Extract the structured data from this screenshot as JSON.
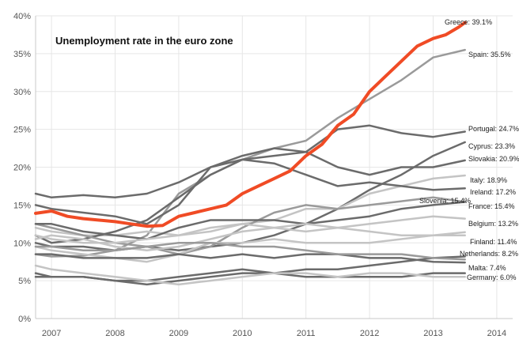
{
  "chart_data": {
    "type": "line",
    "title": "Unemployment rate in the euro zone",
    "xlabel": "",
    "ylabel": "",
    "xlim": [
      2006.75,
      2014.25
    ],
    "ylim": [
      0,
      40
    ],
    "x_ticks": [
      2007,
      2008,
      2009,
      2010,
      2011,
      2012,
      2013,
      2014
    ],
    "y_ticks": [
      0,
      5,
      10,
      15,
      20,
      25,
      30,
      35,
      40
    ],
    "y_tick_labels": [
      "0%",
      "5%",
      "10%",
      "15%",
      "20%",
      "25%",
      "30%",
      "35%",
      "40%"
    ],
    "grid": true,
    "colors": {
      "highlight": "#f04b25",
      "dark": "#6b6b6b",
      "medium": "#9a9a9a",
      "light": "#c4c4c4",
      "grid": "#e6e6e6",
      "axis": "#c8c8c8"
    },
    "series": [
      {
        "name": "Greece",
        "end_label": "Greece: 39.1%",
        "color": "highlight",
        "x": [
          2006.75,
          2007.0,
          2007.25,
          2007.5,
          2007.75,
          2008.0,
          2008.25,
          2008.5,
          2008.75,
          2009.0,
          2009.25,
          2009.5,
          2009.75,
          2010.0,
          2010.25,
          2010.5,
          2010.75,
          2011.0,
          2011.25,
          2011.5,
          2011.75,
          2012.0,
          2012.25,
          2012.5,
          2012.75,
          2013.0,
          2013.2,
          2013.4,
          2013.5
        ],
        "y": [
          13.9,
          14.2,
          13.5,
          13.2,
          13.0,
          12.8,
          12.5,
          12.2,
          12.3,
          13.5,
          14.0,
          14.5,
          15.0,
          16.5,
          17.5,
          18.5,
          19.5,
          21.5,
          23.0,
          25.5,
          27.0,
          30.0,
          32.0,
          34.0,
          36.0,
          37.0,
          37.5,
          38.5,
          39.1
        ]
      },
      {
        "name": "Spain",
        "end_label": "Spain: 35.5%",
        "color": "medium",
        "x": [
          2006.75,
          2007.0,
          2007.5,
          2008.0,
          2008.5,
          2009.0,
          2009.5,
          2010.0,
          2010.5,
          2011.0,
          2011.5,
          2012.0,
          2012.5,
          2013.0,
          2013.5
        ],
        "y": [
          8.5,
          8.2,
          8.3,
          9.0,
          11.0,
          16.5,
          19.0,
          21.0,
          22.5,
          23.5,
          26.5,
          29.0,
          31.5,
          34.5,
          35.5
        ]
      },
      {
        "name": "Portugal",
        "end_label": "Portugal: 24.7%",
        "color": "dark",
        "x": [
          2006.75,
          2007.0,
          2007.5,
          2008.0,
          2008.5,
          2009.0,
          2009.5,
          2010.0,
          2010.5,
          2011.0,
          2011.5,
          2012.0,
          2012.5,
          2013.0,
          2013.5
        ],
        "y": [
          16.5,
          16.0,
          16.3,
          16.0,
          16.5,
          18.0,
          20.0,
          21.0,
          21.5,
          22.0,
          25.0,
          25.5,
          24.5,
          24.0,
          24.7
        ]
      },
      {
        "name": "Cyprus",
        "end_label": "Cyprus: 23.3%",
        "color": "dark",
        "x": [
          2006.75,
          2007.0,
          2007.5,
          2008.0,
          2008.5,
          2009.0,
          2009.5,
          2010.0,
          2010.5,
          2011.0,
          2011.5,
          2012.0,
          2012.5,
          2013.0,
          2013.5
        ],
        "y": [
          10.0,
          9.5,
          9.5,
          9.0,
          9.5,
          9.0,
          9.5,
          10.0,
          11.0,
          12.5,
          14.5,
          17.0,
          19.0,
          21.5,
          23.3
        ]
      },
      {
        "name": "Slovakia",
        "end_label": "Slovakia: 20.9%",
        "color": "dark",
        "x": [
          2006.75,
          2007.0,
          2007.5,
          2008.0,
          2008.5,
          2009.0,
          2009.5,
          2010.0,
          2010.5,
          2011.0,
          2011.5,
          2012.0,
          2012.5,
          2013.0,
          2013.5
        ],
        "y": [
          15.0,
          14.5,
          14.0,
          13.5,
          12.5,
          15.0,
          20.0,
          21.5,
          22.5,
          22.0,
          20.0,
          19.0,
          20.0,
          20.0,
          20.9
        ]
      },
      {
        "name": "Italy",
        "end_label": "Italy: 18.9%",
        "color": "light",
        "x": [
          2006.75,
          2007.0,
          2007.5,
          2008.0,
          2008.5,
          2009.0,
          2009.5,
          2010.0,
          2010.5,
          2011.0,
          2011.5,
          2012.0,
          2012.5,
          2013.0,
          2013.5
        ],
        "y": [
          12.0,
          11.5,
          11.0,
          11.0,
          11.5,
          11.0,
          11.5,
          12.5,
          13.0,
          14.5,
          14.5,
          16.5,
          17.5,
          18.5,
          18.9
        ]
      },
      {
        "name": "Ireland",
        "end_label": "Ireland: 17.2%",
        "color": "dark",
        "x": [
          2006.75,
          2007.0,
          2007.5,
          2008.0,
          2008.5,
          2009.0,
          2009.5,
          2010.0,
          2010.5,
          2011.0,
          2011.5,
          2012.0,
          2012.5,
          2013.0,
          2013.5
        ],
        "y": [
          11.0,
          10.0,
          10.5,
          11.5,
          13.0,
          16.0,
          19.0,
          21.0,
          20.5,
          19.0,
          17.5,
          18.0,
          17.5,
          17.0,
          17.2
        ]
      },
      {
        "name": "Slovenia",
        "end_label": "Slovenia: 15.4%",
        "color": "medium",
        "x": [
          2006.75,
          2007.0,
          2007.5,
          2008.0,
          2008.5,
          2009.0,
          2009.5,
          2010.0,
          2010.5,
          2011.0,
          2011.5,
          2012.0,
          2012.5,
          2013.0,
          2013.5
        ],
        "y": [
          12.5,
          12.0,
          11.0,
          10.0,
          9.5,
          8.5,
          9.5,
          12.0,
          14.0,
          15.0,
          14.5,
          15.0,
          15.5,
          16.0,
          15.4
        ]
      },
      {
        "name": "France",
        "end_label": "France: 15.4%",
        "color": "dark",
        "x": [
          2006.75,
          2007.0,
          2007.5,
          2008.0,
          2008.5,
          2009.0,
          2009.5,
          2010.0,
          2010.5,
          2011.0,
          2011.5,
          2012.0,
          2012.5,
          2013.0,
          2013.5
        ],
        "y": [
          12.5,
          12.5,
          11.5,
          11.0,
          10.5,
          12.0,
          13.0,
          13.0,
          13.0,
          12.5,
          13.0,
          13.5,
          14.5,
          15.0,
          15.4
        ]
      },
      {
        "name": "Belgium",
        "end_label": "Belgium: 13.2%",
        "color": "light",
        "x": [
          2006.75,
          2007.0,
          2007.5,
          2008.0,
          2008.5,
          2009.0,
          2009.5,
          2010.0,
          2010.5,
          2011.0,
          2011.5,
          2012.0,
          2012.5,
          2013.0,
          2013.5
        ],
        "y": [
          11.0,
          10.5,
          10.0,
          10.0,
          10.5,
          11.0,
          12.0,
          12.5,
          12.0,
          11.5,
          12.0,
          12.5,
          13.0,
          13.5,
          13.2
        ]
      },
      {
        "name": "Finland",
        "end_label": "Finland: 11.4%",
        "color": "light",
        "x": [
          2006.75,
          2007.0,
          2007.5,
          2008.0,
          2008.5,
          2009.0,
          2009.5,
          2010.0,
          2010.5,
          2011.0,
          2011.5,
          2012.0,
          2012.5,
          2013.0,
          2013.5
        ],
        "y": [
          9.5,
          9.0,
          8.5,
          8.0,
          7.5,
          8.5,
          10.0,
          10.0,
          10.5,
          10.0,
          10.0,
          10.0,
          10.5,
          11.0,
          11.4
        ]
      },
      {
        "name": "Netherlands",
        "end_label": "Netherlands: 8.2%",
        "color": "dark",
        "x": [
          2006.75,
          2007.0,
          2007.5,
          2008.0,
          2008.5,
          2009.0,
          2009.5,
          2010.0,
          2010.5,
          2011.0,
          2011.5,
          2012.0,
          2012.5,
          2013.0,
          2013.5
        ],
        "y": [
          6.0,
          5.5,
          5.5,
          5.0,
          4.5,
          5.0,
          5.5,
          6.0,
          6.0,
          6.5,
          6.5,
          7.0,
          7.5,
          8.0,
          8.2
        ]
      },
      {
        "name": "Malta",
        "end_label": "Malta: 7.4%",
        "color": "dark",
        "x": [
          2006.75,
          2007.0,
          2007.5,
          2008.0,
          2008.5,
          2009.0,
          2009.5,
          2010.0,
          2010.5,
          2011.0,
          2011.5,
          2012.0,
          2012.5,
          2013.0,
          2013.5
        ],
        "y": [
          8.5,
          8.5,
          8.0,
          8.0,
          8.0,
          8.5,
          8.0,
          8.5,
          8.0,
          8.5,
          8.5,
          8.0,
          8.0,
          7.5,
          7.4
        ]
      },
      {
        "name": "Germany",
        "end_label": "Germany: 6.0%",
        "color": "dark",
        "x": [
          2006.75,
          2007.0,
          2007.5,
          2008.0,
          2008.5,
          2009.0,
          2009.5,
          2010.0,
          2010.5,
          2011.0,
          2011.5,
          2012.0,
          2012.5,
          2013.0,
          2013.5
        ],
        "y": [
          5.5,
          5.5,
          5.5,
          5.0,
          5.0,
          5.5,
          6.0,
          6.5,
          6.0,
          5.5,
          5.5,
          5.5,
          5.5,
          6.0,
          6.0
        ]
      },
      {
        "color": "light",
        "x": [
          2006.75,
          2007.0,
          2007.5,
          2008.0,
          2008.5,
          2009.0,
          2009.5,
          2010.0,
          2010.5,
          2011.0,
          2011.5,
          2012.0,
          2012.5,
          2013.0,
          2013.5
        ],
        "y": [
          10.5,
          11.0,
          10.5,
          9.5,
          9.0,
          9.5,
          10.5,
          11.5,
          12.0,
          12.5,
          12.0,
          11.5,
          11.0,
          11.0,
          11.0
        ]
      },
      {
        "color": "light",
        "x": [
          2006.75,
          2007.0,
          2007.5,
          2008.0,
          2008.5,
          2009.0,
          2009.5,
          2010.0,
          2010.5,
          2011.0,
          2011.5,
          2012.0,
          2012.5,
          2013.0,
          2013.5
        ],
        "y": [
          7.0,
          6.5,
          6.0,
          5.5,
          5.0,
          4.5,
          5.0,
          5.5,
          6.0,
          6.0,
          5.5,
          6.0,
          6.0,
          5.5,
          5.5
        ]
      },
      {
        "color": "medium",
        "x": [
          2006.75,
          2007.0,
          2007.5,
          2008.0,
          2008.5,
          2009.0,
          2009.5,
          2010.0,
          2010.5,
          2011.0,
          2011.5,
          2012.0,
          2012.5,
          2013.0,
          2013.5
        ],
        "y": [
          9.5,
          9.5,
          9.0,
          9.0,
          9.5,
          10.0,
          10.0,
          9.5,
          9.5,
          9.0,
          8.5,
          8.5,
          8.5,
          8.0,
          7.8
        ]
      }
    ]
  }
}
